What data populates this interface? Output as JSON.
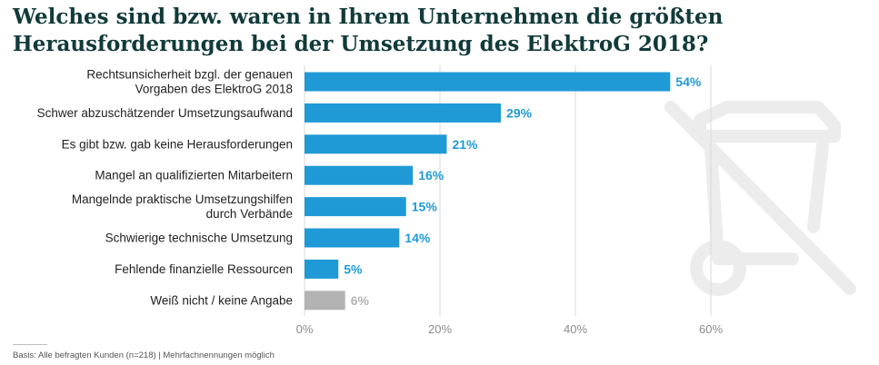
{
  "title": "Welches sind bzw. waren in Ihrem Unternehmen die größten Herausforderungen bei der Umsetzung des ElektroG 2018?",
  "footnote": "Basis: Alle befragten Kunden (n=218) | Mehrfachnennungen möglich",
  "colors": {
    "bar": "#1f9ad6",
    "bar_muted": "#b3b3b3",
    "label": "#1f9ad6",
    "label_muted": "#b3b3b3",
    "grid": "#d9d9d9",
    "text": "#222222",
    "watermark": "#ececec"
  },
  "icon": "crossed-out-wheelie-bin-icon",
  "chart_data": {
    "type": "bar",
    "orientation": "horizontal",
    "categories": [
      [
        "Rechtsunsicherheit bzgl. der genauen",
        "Vorgaben des ElektroG 2018"
      ],
      [
        "Schwer abzuschätzender Umsetzungsaufwand"
      ],
      [
        "Es gibt bzw. gab keine Herausforderungen"
      ],
      [
        "Mangel an qualifizierten Mitarbeitern"
      ],
      [
        "Mangelnde praktische Umsetzungshilfen",
        "durch Verbände"
      ],
      [
        "Schwierige technische Umsetzung"
      ],
      [
        "Fehlende finanzielle Ressourcen"
      ],
      [
        "Weiß nicht / keine Angabe"
      ]
    ],
    "values": [
      54,
      29,
      21,
      16,
      15,
      14,
      5,
      6
    ],
    "value_labels": [
      "54%",
      "29%",
      "21%",
      "16%",
      "15%",
      "14%",
      "5%",
      "6%"
    ],
    "muted": [
      false,
      false,
      false,
      false,
      false,
      false,
      false,
      true
    ],
    "xlim": [
      0,
      60
    ],
    "xticks": [
      0,
      20,
      40,
      60
    ],
    "xtick_labels": [
      "0%",
      "20%",
      "40%",
      "60%"
    ],
    "grid": true,
    "legend": "none"
  }
}
